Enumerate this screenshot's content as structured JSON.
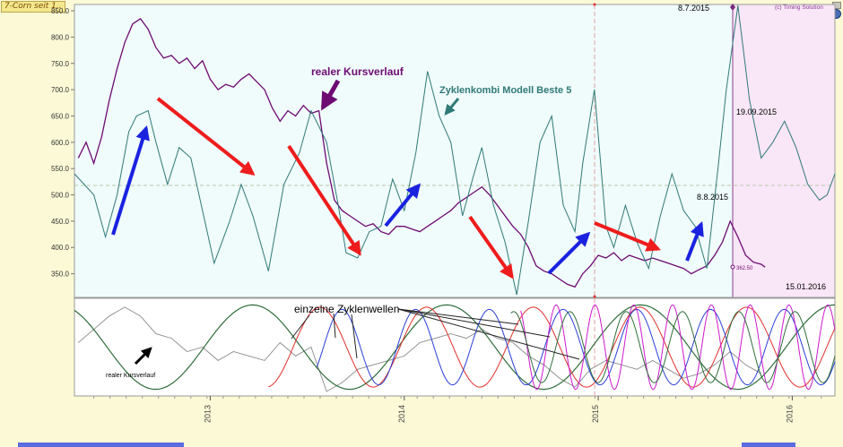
{
  "window": {
    "tab_label": "7-Corn seit 1..",
    "copyright": "(c) Timing Solution"
  },
  "colors": {
    "price": "#6e0b72",
    "cycle_model": "#2f7a78",
    "wave_green": "#2f6e3a",
    "wave_red": "#e0302c",
    "wave_blue": "#2a3ed6",
    "wave_magenta": "#cc19cc",
    "wave_gray": "#8a8a8a",
    "arrow_red": "#ee1c1c",
    "arrow_blue": "#1a22e0",
    "forecast_bg": "#f9e6f7",
    "plot_bg": "#f0fbfb"
  },
  "annotations": {
    "real_price": "realer Kursverlauf",
    "cycle_model": "Zyklenkombi Modell Beste 5",
    "single_waves": "einzelne Zyklenwellen",
    "real_price_small": "realer Kursverlauf",
    "date_peak": "8.7.2015",
    "date_cycle_peak": "19.09.2015",
    "date_low": "8.8.2015",
    "date_end": "15.01.2016",
    "last_value": "362.50"
  },
  "chart_data": [
    {
      "type": "line",
      "title": "",
      "y_ticks": [
        "350.0",
        "400.0",
        "450.0",
        "500.0",
        "550.0",
        "600.0",
        "650.0",
        "700.0",
        "750.0",
        "800.0",
        "850.0"
      ],
      "ylim": [
        305,
        862
      ],
      "x_ticks": [
        "2013",
        "2014",
        "2015",
        "2016"
      ],
      "xlim": [
        2012.3,
        2016.22
      ],
      "reference_level": 518,
      "series": [
        {
          "name": "realer Kursverlauf",
          "color": "#6e0b72",
          "points": [
            [
              2012.32,
              570
            ],
            [
              2012.36,
              600
            ],
            [
              2012.4,
              560
            ],
            [
              2012.44,
              610
            ],
            [
              2012.48,
              680
            ],
            [
              2012.52,
              740
            ],
            [
              2012.56,
              790
            ],
            [
              2012.6,
              825
            ],
            [
              2012.64,
              835
            ],
            [
              2012.68,
              815
            ],
            [
              2012.72,
              780
            ],
            [
              2012.76,
              760
            ],
            [
              2012.8,
              765
            ],
            [
              2012.84,
              750
            ],
            [
              2012.88,
              760
            ],
            [
              2012.92,
              740
            ],
            [
              2012.96,
              755
            ],
            [
              2013.0,
              720
            ],
            [
              2013.04,
              700
            ],
            [
              2013.08,
              710
            ],
            [
              2013.12,
              705
            ],
            [
              2013.16,
              720
            ],
            [
              2013.2,
              730
            ],
            [
              2013.24,
              715
            ],
            [
              2013.28,
              700
            ],
            [
              2013.32,
              665
            ],
            [
              2013.36,
              640
            ],
            [
              2013.4,
              660
            ],
            [
              2013.44,
              650
            ],
            [
              2013.48,
              670
            ],
            [
              2013.52,
              655
            ],
            [
              2013.56,
              660
            ],
            [
              2013.6,
              560
            ],
            [
              2013.64,
              490
            ],
            [
              2013.68,
              470
            ],
            [
              2013.72,
              460
            ],
            [
              2013.76,
              450
            ],
            [
              2013.8,
              440
            ],
            [
              2013.84,
              445
            ],
            [
              2013.88,
              430
            ],
            [
              2013.92,
              425
            ],
            [
              2013.96,
              440
            ],
            [
              2014.0,
              440
            ],
            [
              2014.04,
              435
            ],
            [
              2014.08,
              430
            ],
            [
              2014.12,
              440
            ],
            [
              2014.16,
              450
            ],
            [
              2014.2,
              460
            ],
            [
              2014.24,
              470
            ],
            [
              2014.28,
              485
            ],
            [
              2014.32,
              495
            ],
            [
              2014.36,
              505
            ],
            [
              2014.4,
              515
            ],
            [
              2014.44,
              500
            ],
            [
              2014.48,
              480
            ],
            [
              2014.52,
              460
            ],
            [
              2014.56,
              440
            ],
            [
              2014.6,
              425
            ],
            [
              2014.64,
              400
            ],
            [
              2014.68,
              365
            ],
            [
              2014.72,
              355
            ],
            [
              2014.76,
              350
            ],
            [
              2014.8,
              340
            ],
            [
              2014.84,
              330
            ],
            [
              2014.88,
              325
            ],
            [
              2014.92,
              350
            ],
            [
              2014.96,
              365
            ],
            [
              2015.0,
              385
            ],
            [
              2015.04,
              380
            ],
            [
              2015.08,
              390
            ],
            [
              2015.12,
              375
            ],
            [
              2015.16,
              385
            ],
            [
              2015.2,
              380
            ],
            [
              2015.24,
              375
            ],
            [
              2015.28,
              380
            ],
            [
              2015.32,
              375
            ],
            [
              2015.36,
              370
            ],
            [
              2015.4,
              365
            ],
            [
              2015.44,
              360
            ],
            [
              2015.48,
              350
            ],
            [
              2015.52,
              358
            ],
            [
              2015.56,
              365
            ],
            [
              2015.6,
              385
            ],
            [
              2015.64,
              410
            ],
            [
              2015.68,
              450
            ],
            [
              2015.72,
              420
            ],
            [
              2015.76,
              385
            ],
            [
              2015.8,
              372
            ],
            [
              2015.84,
              368
            ],
            [
              2015.86,
              362.5
            ]
          ]
        },
        {
          "name": "Zyklenkombi Modell Beste 5",
          "color": "#2f7a78",
          "points": [
            [
              2012.3,
              540
            ],
            [
              2012.4,
              500
            ],
            [
              2012.46,
              420
            ],
            [
              2012.52,
              500
            ],
            [
              2012.58,
              620
            ],
            [
              2012.62,
              650
            ],
            [
              2012.68,
              660
            ],
            [
              2012.72,
              600
            ],
            [
              2012.78,
              520
            ],
            [
              2012.84,
              590
            ],
            [
              2012.9,
              570
            ],
            [
              2012.96,
              470
            ],
            [
              2013.02,
              370
            ],
            [
              2013.1,
              450
            ],
            [
              2013.16,
              520
            ],
            [
              2013.22,
              460
            ],
            [
              2013.3,
              355
            ],
            [
              2013.38,
              520
            ],
            [
              2013.46,
              580
            ],
            [
              2013.52,
              660
            ],
            [
              2013.6,
              600
            ],
            [
              2013.66,
              480
            ],
            [
              2013.7,
              390
            ],
            [
              2013.76,
              380
            ],
            [
              2013.82,
              430
            ],
            [
              2013.88,
              440
            ],
            [
              2013.94,
              530
            ],
            [
              2014.0,
              470
            ],
            [
              2014.06,
              580
            ],
            [
              2014.12,
              735
            ],
            [
              2014.18,
              650
            ],
            [
              2014.24,
              600
            ],
            [
              2014.3,
              460
            ],
            [
              2014.36,
              540
            ],
            [
              2014.4,
              590
            ],
            [
              2014.46,
              480
            ],
            [
              2014.52,
              410
            ],
            [
              2014.58,
              310
            ],
            [
              2014.64,
              450
            ],
            [
              2014.7,
              600
            ],
            [
              2014.76,
              650
            ],
            [
              2014.82,
              480
            ],
            [
              2014.88,
              430
            ],
            [
              2014.92,
              560
            ],
            [
              2014.98,
              700
            ],
            [
              2015.04,
              440
            ],
            [
              2015.08,
              400
            ],
            [
              2015.14,
              480
            ],
            [
              2015.2,
              410
            ],
            [
              2015.26,
              360
            ],
            [
              2015.32,
              460
            ],
            [
              2015.38,
              540
            ],
            [
              2015.44,
              470
            ],
            [
              2015.5,
              440
            ],
            [
              2015.56,
              360
            ],
            [
              2015.62,
              560
            ],
            [
              2015.66,
              700
            ],
            [
              2015.72,
              860
            ],
            [
              2015.78,
              680
            ],
            [
              2015.84,
              570
            ],
            [
              2015.9,
              600
            ],
            [
              2015.96,
              640
            ],
            [
              2016.02,
              590
            ],
            [
              2016.08,
              520
            ],
            [
              2016.14,
              490
            ],
            [
              2016.18,
              500
            ],
            [
              2016.22,
              540
            ]
          ]
        }
      ]
    },
    {
      "type": "line",
      "title": "",
      "y_ticks": [],
      "x_ticks": [
        "2013",
        "2014",
        "2015",
        "2016"
      ],
      "xlim": [
        2012.3,
        2016.22
      ],
      "ylim": [
        -1.1,
        1.1
      ],
      "series": [
        {
          "name": "realer Kursverlauf",
          "color": "#8a8a8a",
          "points": [
            [
              2012.32,
              0.1
            ],
            [
              2012.4,
              0.4
            ],
            [
              2012.48,
              0.7
            ],
            [
              2012.56,
              0.9
            ],
            [
              2012.64,
              0.7
            ],
            [
              2012.72,
              0.3
            ],
            [
              2012.8,
              0.2
            ],
            [
              2012.88,
              -0.1
            ],
            [
              2012.96,
              0.0
            ],
            [
              2013.04,
              -0.3
            ],
            [
              2013.12,
              -0.1
            ],
            [
              2013.2,
              -0.2
            ],
            [
              2013.28,
              -0.3
            ],
            [
              2013.36,
              0.1
            ],
            [
              2013.44,
              -0.2
            ],
            [
              2013.52,
              0.0
            ],
            [
              2013.6,
              -1.0
            ],
            [
              2013.68,
              -0.8
            ],
            [
              2013.76,
              -0.5
            ],
            [
              2013.84,
              -0.4
            ],
            [
              2013.92,
              -0.3
            ],
            [
              2014.0,
              -0.2
            ],
            [
              2014.08,
              0.1
            ],
            [
              2014.16,
              0.2
            ],
            [
              2014.24,
              0.3
            ],
            [
              2014.32,
              0.2
            ],
            [
              2014.4,
              0.4
            ],
            [
              2014.48,
              0.2
            ],
            [
              2014.56,
              0.1
            ],
            [
              2014.64,
              -0.2
            ],
            [
              2014.72,
              -0.4
            ],
            [
              2014.8,
              -0.7
            ],
            [
              2014.88,
              -0.9
            ],
            [
              2014.96,
              -0.5
            ],
            [
              2015.04,
              -0.3
            ],
            [
              2015.12,
              -0.4
            ],
            [
              2015.2,
              -0.5
            ],
            [
              2015.28,
              -0.3
            ],
            [
              2015.36,
              -0.5
            ],
            [
              2015.44,
              -0.7
            ],
            [
              2015.52,
              -0.6
            ],
            [
              2015.6,
              -0.4
            ],
            [
              2015.68,
              -0.1
            ],
            [
              2015.76,
              -0.4
            ],
            [
              2015.84,
              -0.6
            ]
          ]
        }
      ]
    }
  ]
}
